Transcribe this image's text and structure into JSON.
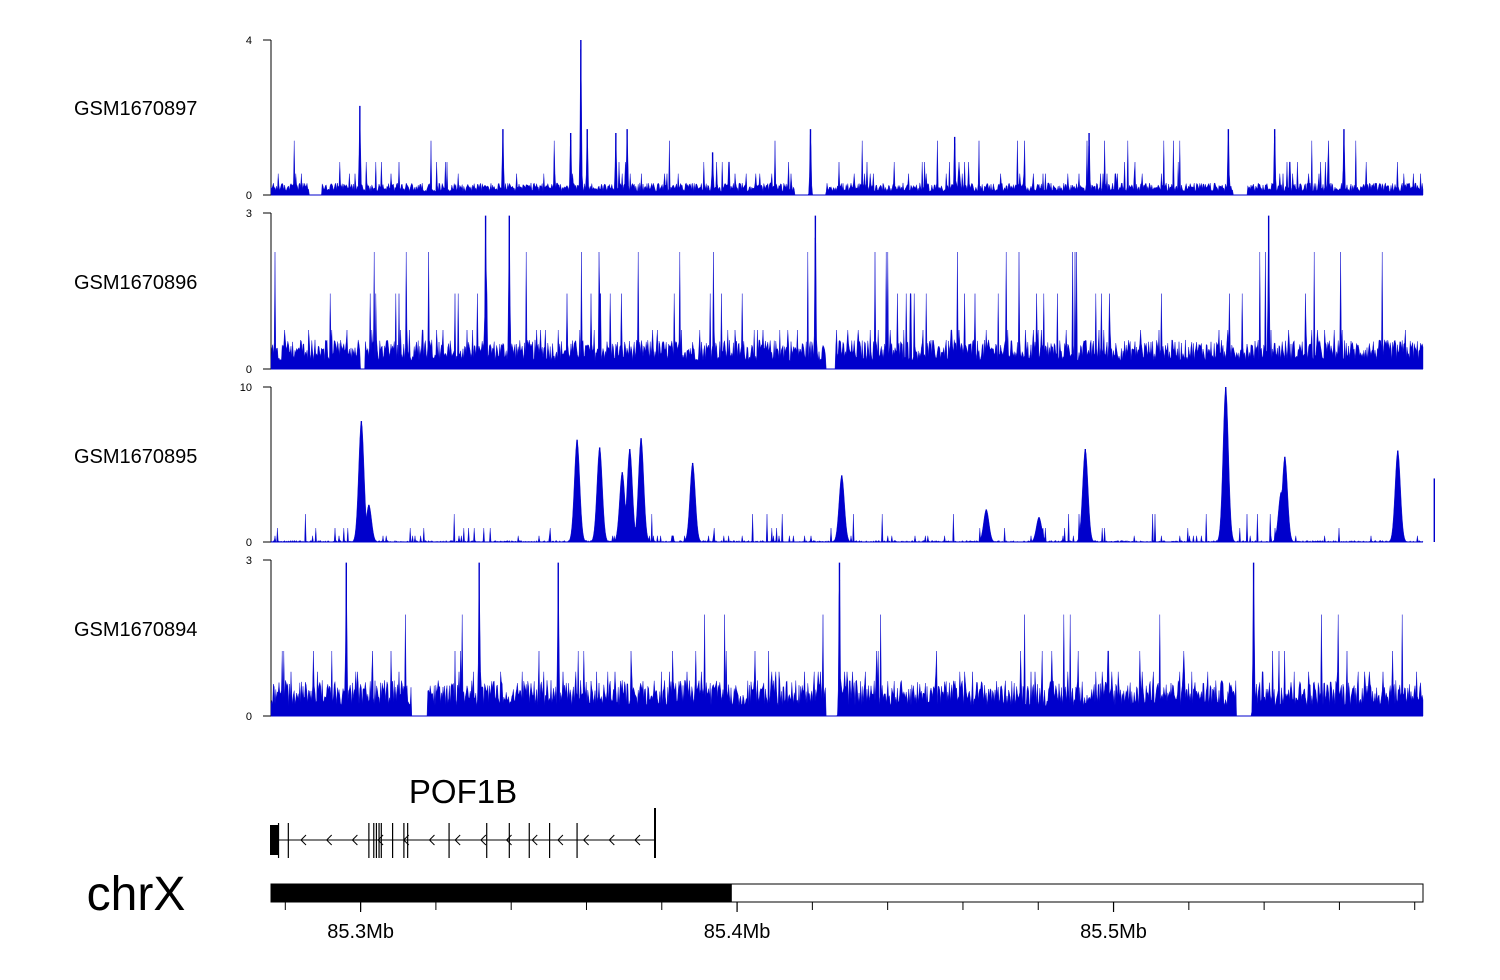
{
  "chart_data": {
    "type": "area",
    "colors": {
      "signal": "#0000cc",
      "axis": "#000000",
      "gene": "#000000"
    },
    "tracks": [
      {
        "name": "GSM1670897",
        "ylim": [
          0,
          4
        ],
        "yticks": [
          "0",
          "4"
        ],
        "baseline": 0.25,
        "spike_levels": [
          0.55,
          0.85,
          1.4
        ],
        "peaks": [
          {
            "x": 85.2998,
            "y": 2.3
          },
          {
            "x": 85.3378,
            "y": 1.7
          },
          {
            "x": 85.3558,
            "y": 1.6
          },
          {
            "x": 85.3585,
            "y": 4.0
          },
          {
            "x": 85.3602,
            "y": 1.7
          },
          {
            "x": 85.3678,
            "y": 1.6
          },
          {
            "x": 85.3708,
            "y": 1.7
          },
          {
            "x": 85.3935,
            "y": 1.1
          },
          {
            "x": 85.4195,
            "y": 1.7
          },
          {
            "x": 85.4578,
            "y": 1.5
          },
          {
            "x": 85.4935,
            "y": 1.6
          },
          {
            "x": 85.5305,
            "y": 1.7
          },
          {
            "x": 85.5428,
            "y": 1.7
          },
          {
            "x": 85.5612,
            "y": 1.7
          }
        ],
        "gaps": [
          [
            85.2862,
            85.2896
          ],
          [
            85.4153,
            85.4235
          ],
          [
            85.5318,
            85.5355
          ]
        ]
      },
      {
        "name": "GSM1670896",
        "ylim": [
          0,
          3
        ],
        "yticks": [
          "0",
          "3"
        ],
        "baseline": 0.45,
        "spike_levels": [
          0.75,
          1.45,
          2.25
        ],
        "peaks": [
          {
            "x": 85.3332,
            "y": 2.95
          },
          {
            "x": 85.3395,
            "y": 2.95
          },
          {
            "x": 85.4208,
            "y": 2.95
          },
          {
            "x": 85.5412,
            "y": 2.95
          }
        ],
        "gaps": [
          [
            85.2998,
            85.3012
          ],
          [
            85.4235,
            85.4262
          ]
        ]
      },
      {
        "name": "GSM1670895",
        "ylim": [
          0,
          10
        ],
        "yticks": [
          "0",
          "10"
        ],
        "baseline": 0.08,
        "spike_levels": [
          0.4,
          0.9,
          1.8
        ],
        "peaks": [
          {
            "x": 85.3002,
            "y": 7.8
          },
          {
            "x": 85.3022,
            "y": 2.4
          },
          {
            "x": 85.3575,
            "y": 6.6
          },
          {
            "x": 85.3635,
            "y": 6.1
          },
          {
            "x": 85.3695,
            "y": 4.5
          },
          {
            "x": 85.3715,
            "y": 6.0
          },
          {
            "x": 85.3745,
            "y": 6.7
          },
          {
            "x": 85.3882,
            "y": 5.1
          },
          {
            "x": 85.4278,
            "y": 4.3
          },
          {
            "x": 85.4662,
            "y": 2.1
          },
          {
            "x": 85.4802,
            "y": 1.6
          },
          {
            "x": 85.4925,
            "y": 6.0
          },
          {
            "x": 85.5298,
            "y": 10.0
          },
          {
            "x": 85.5445,
            "y": 3.2
          },
          {
            "x": 85.5455,
            "y": 5.5
          },
          {
            "x": 85.5755,
            "y": 5.9
          },
          {
            "x": 85.5852,
            "y": 4.1
          }
        ],
        "gaps": []
      },
      {
        "name": "GSM1670894",
        "ylim": [
          0,
          3
        ],
        "yticks": [
          "0",
          "3"
        ],
        "baseline": 0.55,
        "spike_levels": [
          0.85,
          1.25,
          1.95
        ],
        "peaks": [
          {
            "x": 85.2962,
            "y": 2.95
          },
          {
            "x": 85.3315,
            "y": 2.95
          },
          {
            "x": 85.3525,
            "y": 2.95
          },
          {
            "x": 85.4272,
            "y": 2.95
          },
          {
            "x": 85.5372,
            "y": 2.95
          }
        ],
        "gaps": [
          [
            85.3135,
            85.3178
          ],
          [
            85.4235,
            85.4268
          ],
          [
            85.5325,
            85.5368
          ]
        ]
      }
    ],
    "xlim": [
      85.2762,
      85.5822
    ],
    "gene": {
      "name": "POF1B",
      "start": 85.2762,
      "end": 85.3782,
      "strand": "-",
      "exons": [
        85.2782,
        85.2808,
        85.3022,
        85.3035,
        85.3042,
        85.3049,
        85.3055,
        85.3085,
        85.3115,
        85.3125,
        85.3235,
        85.3335,
        85.3395,
        85.3448,
        85.3502,
        85.3575,
        85.3782
      ]
    },
    "chromosome": {
      "name": "chrX",
      "highlight": [
        85.2762,
        85.3986
      ],
      "xticks": [
        {
          "value": 85.3,
          "label": "85.3Mb"
        },
        {
          "value": 85.4,
          "label": "85.4Mb"
        },
        {
          "value": 85.5,
          "label": "85.5Mb"
        }
      ],
      "minor_step": 0.02
    }
  }
}
